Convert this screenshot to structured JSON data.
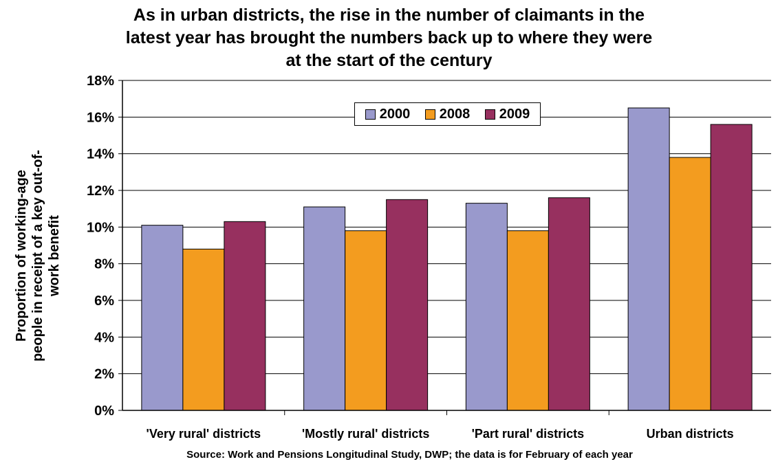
{
  "chart_data": {
    "type": "bar",
    "title": [
      "As in urban districts, the rise in the number of claimants in the",
      "latest year has brought the numbers back up to where they were",
      "at the start of the century"
    ],
    "xlabel": "",
    "ylabel": [
      "Proportion of working-age",
      "people in receipt of a key out-of-",
      "work benefit"
    ],
    "categories": [
      "'Very rural' districts",
      "'Mostly rural' districts",
      "'Part rural' districts",
      "Urban districts"
    ],
    "series": [
      {
        "name": "2000",
        "color": "#9999cc",
        "values": [
          10.1,
          11.1,
          11.3,
          16.5
        ]
      },
      {
        "name": "2008",
        "color": "#f39c1f",
        "values": [
          8.8,
          9.8,
          9.8,
          13.8
        ]
      },
      {
        "name": "2009",
        "color": "#97305f",
        "values": [
          10.3,
          11.5,
          11.6,
          15.6
        ]
      }
    ],
    "ylim": [
      0,
      18
    ],
    "yticks": [
      "0%",
      "2%",
      "4%",
      "6%",
      "8%",
      "10%",
      "12%",
      "14%",
      "16%",
      "18%"
    ],
    "grid": true,
    "legend": "top-center",
    "source": "Source: Work and Pensions Longitudinal Study, DWP; the data is for February of each year"
  }
}
